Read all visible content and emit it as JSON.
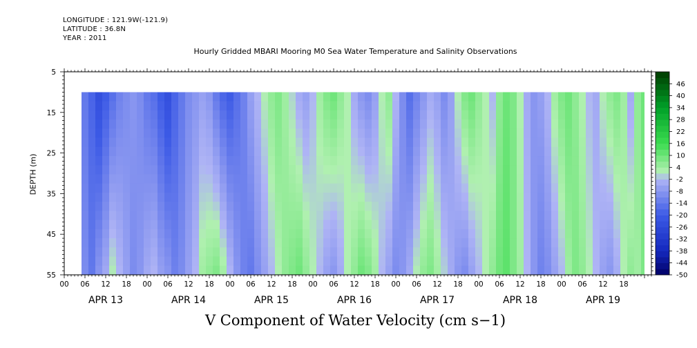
{
  "chart_data": {
    "type": "heatmap",
    "title": "Hourly Gridded MBARI Mooring M0 Sea Water Temperature and Salinity Observations",
    "header_lines": [
      "LONGITUDE : 121.9W(-121.9)",
      "LATITUDE : 36.8N",
      "YEAR : 2011"
    ],
    "xlabel": "V Component of Water Velocity (cm s−1)",
    "ylabel": "DEPTH (m)",
    "x_hour_ticks": [
      "00",
      "06",
      "12",
      "18",
      "00",
      "06",
      "12",
      "18",
      "00",
      "06",
      "12",
      "18",
      "00",
      "06",
      "12",
      "18",
      "00",
      "06",
      "12",
      "18",
      "00",
      "06",
      "12",
      "18",
      "00",
      "06",
      "12",
      "18"
    ],
    "x_day_labels": [
      "APR 13",
      "APR 14",
      "APR 15",
      "APR 16",
      "APR 17",
      "APR 18",
      "APR 19"
    ],
    "xlim_hours": [
      0,
      170
    ],
    "data_start_hour": 5,
    "data_end_hour": 168,
    "y_ticks": [
      "5",
      "15",
      "25",
      "35",
      "45",
      "55"
    ],
    "ylim": [
      5,
      55
    ],
    "data_depth_top": 10,
    "data_depth_bottom": 55,
    "colorbar_labels": [
      "46",
      "40",
      "34",
      "28",
      "22",
      "16",
      "10",
      "4",
      "-2",
      "-8",
      "-14",
      "-20",
      "-26",
      "-32",
      "-38",
      "-44",
      "-50"
    ],
    "colorbar_range": [
      -50,
      52
    ],
    "colorbar_step": 3,
    "colorbar_colors": {
      "low": "#000066",
      "mid_low": "#aab0f0",
      "mid_high": "#b0f0b0",
      "high": "#004400"
    },
    "grid": false,
    "colorbar_position": "right",
    "column_profiles": {
      "hours": [
        5,
        7,
        9,
        11,
        13,
        15,
        17,
        19,
        21,
        23,
        25,
        27,
        29,
        31,
        33,
        35,
        37,
        39,
        41,
        43,
        45,
        47,
        49,
        51,
        53,
        55,
        57,
        59,
        61,
        63,
        65,
        67,
        69,
        71,
        73,
        75,
        77,
        79,
        81,
        83,
        85,
        87,
        89,
        91,
        93,
        95,
        97,
        99,
        101,
        103,
        105,
        107,
        109,
        111,
        113,
        115,
        117,
        119,
        121,
        123,
        125,
        127,
        129,
        131,
        133,
        135,
        137,
        139,
        141,
        143,
        145,
        147,
        149,
        151,
        153,
        155,
        157,
        159,
        161,
        163,
        165,
        167
      ],
      "top_cm_s": [
        -14,
        -18,
        -24,
        -20,
        -16,
        -12,
        -10,
        -8,
        -10,
        -14,
        -16,
        -20,
        -24,
        -18,
        -14,
        -10,
        -8,
        -6,
        -8,
        -14,
        -18,
        -20,
        -16,
        -12,
        -6,
        -2,
        2,
        6,
        8,
        4,
        0,
        -4,
        -6,
        -2,
        4,
        8,
        10,
        6,
        2,
        -4,
        -8,
        -10,
        -6,
        2,
        6,
        -2,
        -10,
        -16,
        -12,
        -8,
        -4,
        -6,
        -10,
        -6,
        2,
        8,
        10,
        6,
        2,
        -2,
        6,
        10,
        8,
        2,
        -4,
        -8,
        -6,
        -2,
        4,
        8,
        10,
        6,
        2,
        -2,
        -4,
        2,
        6,
        8,
        4,
        -4,
        6,
        10
      ],
      "bottom_cm_s": [
        -10,
        -14,
        -8,
        -4,
        2,
        -2,
        -6,
        -10,
        -8,
        -4,
        -2,
        -6,
        -8,
        -12,
        -10,
        -6,
        -2,
        4,
        6,
        8,
        4,
        -2,
        -8,
        -12,
        -14,
        -10,
        -6,
        -2,
        2,
        6,
        8,
        10,
        6,
        2,
        -2,
        -6,
        -8,
        -4,
        2,
        6,
        10,
        8,
        4,
        -2,
        -6,
        -10,
        -8,
        -4,
        2,
        6,
        8,
        4,
        0,
        -4,
        -8,
        -10,
        -6,
        -2,
        2,
        6,
        10,
        12,
        8,
        4,
        -2,
        -8,
        -12,
        -10,
        -6,
        -2,
        4,
        8,
        6,
        2,
        -2,
        -6,
        -8,
        -4,
        2,
        6,
        4,
        8
      ]
    }
  }
}
